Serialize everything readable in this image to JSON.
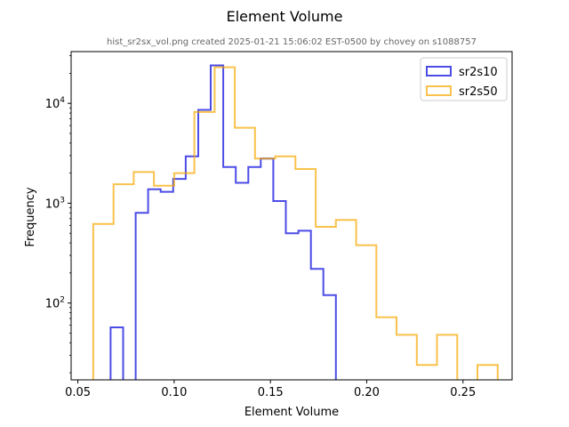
{
  "chart_data": {
    "type": "histogram-step",
    "title": "Element Volume",
    "subtitle": "hist_sr2sx_vol.png created 2025-01-21 15:06:02 EST-0500 by chovey on s1088757",
    "xlabel": "Element Volume",
    "ylabel": "Frequency",
    "xlim": [
      0.0465,
      0.2755
    ],
    "ylim": [
      17,
      33000
    ],
    "yscale": "log",
    "x_ticks": [
      {
        "value": 0.05,
        "label": "0.05"
      },
      {
        "value": 0.1,
        "label": "0.10"
      },
      {
        "value": 0.15,
        "label": "0.15"
      },
      {
        "value": 0.2,
        "label": "0.20"
      },
      {
        "value": 0.25,
        "label": "0.25"
      }
    ],
    "y_ticks": [
      {
        "value": 100,
        "base": "10",
        "exp": "2"
      },
      {
        "value": 1000,
        "base": "10",
        "exp": "3"
      },
      {
        "value": 10000,
        "base": "10",
        "exp": "4"
      }
    ],
    "legend_position": "top-right",
    "series": [
      {
        "name": "sr2s10",
        "color": "#0000dd",
        "edges": [
          0.067,
          0.0735,
          0.08,
          0.0865,
          0.093,
          0.0995,
          0.106,
          0.1125,
          0.119,
          0.1255,
          0.132,
          0.1385,
          0.145,
          0.1515,
          0.158,
          0.1645,
          0.171,
          0.1775,
          0.184,
          0.1905
        ],
        "counts": [
          57,
          0,
          800,
          1380,
          1300,
          1750,
          2950,
          8600,
          24000,
          2300,
          1600,
          2300,
          2800,
          1050,
          500,
          530,
          220,
          120,
          0
        ]
      },
      {
        "name": "sr2s50",
        "color": "#f7a800",
        "edges": [
          0.058,
          0.0685,
          0.079,
          0.0895,
          0.1,
          0.1105,
          0.121,
          0.1315,
          0.142,
          0.1525,
          0.163,
          0.1735,
          0.184,
          0.1945,
          0.205,
          0.2155,
          0.226,
          0.2365,
          0.247,
          0.2575,
          0.268
        ],
        "counts": [
          620,
          1550,
          2050,
          1500,
          2000,
          8200,
          23000,
          5700,
          2800,
          2950,
          2200,
          580,
          680,
          380,
          72,
          48,
          24,
          48,
          0,
          24
        ]
      }
    ]
  }
}
